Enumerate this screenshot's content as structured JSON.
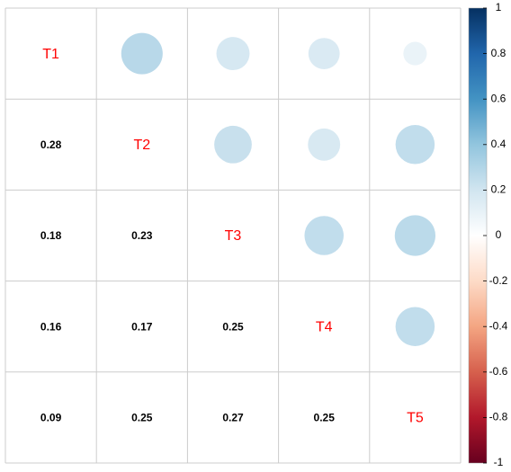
{
  "chart_data": {
    "type": "corrplot",
    "variables": [
      "T1",
      "T2",
      "T3",
      "T4",
      "T5"
    ],
    "lower": [
      [],
      [
        0.28
      ],
      [
        0.18,
        0.23
      ],
      [
        0.16,
        0.17,
        0.25
      ],
      [
        0.09,
        0.25,
        0.27,
        0.25
      ]
    ],
    "clim": [
      -1,
      1
    ],
    "cticks": [
      -1,
      -0.8,
      -0.6,
      -0.4,
      -0.2,
      0,
      0.2,
      0.4,
      0.6,
      0.8,
      1
    ],
    "colors": [
      "#67001F",
      "#B2182B",
      "#D6604D",
      "#F4A582",
      "#FDDBC7",
      "#FFFFFF",
      "#D1E5F0",
      "#92C5DE",
      "#4393C3",
      "#2166AC",
      "#053061"
    ],
    "label_color": "#FF0000"
  }
}
